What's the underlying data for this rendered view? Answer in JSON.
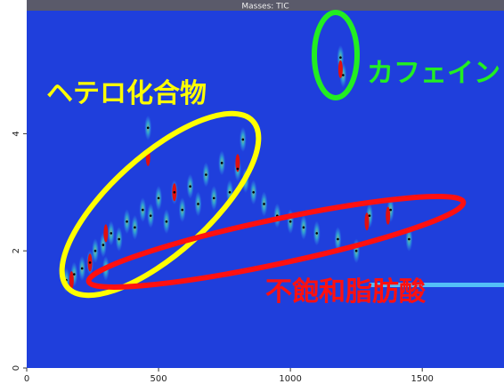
{
  "chart_data": {
    "type": "scatter",
    "title": "Masses: TIC",
    "x": [
      150,
      180,
      210,
      240,
      260,
      290,
      320,
      350,
      380,
      410,
      440,
      470,
      500,
      530,
      560,
      590,
      620,
      650,
      680,
      710,
      740,
      770,
      800,
      830,
      860,
      900,
      950,
      1000,
      1050,
      1100,
      1180,
      1250,
      1300,
      1380,
      1450,
      1200,
      1190,
      460,
      820,
      300
    ],
    "values": [
      1.5,
      1.6,
      1.7,
      1.8,
      2.0,
      2.1,
      2.3,
      2.2,
      2.5,
      2.4,
      2.7,
      2.6,
      2.9,
      2.5,
      3.0,
      2.7,
      3.1,
      2.8,
      3.3,
      2.9,
      3.5,
      3.0,
      3.4,
      3.2,
      3.0,
      2.8,
      2.6,
      2.5,
      2.4,
      2.3,
      2.2,
      2.0,
      2.6,
      2.7,
      2.2,
      5.0,
      5.3,
      4.1,
      3.9,
      1.7
    ],
    "hotspots": {
      "x": [
        170,
        240,
        300,
        460,
        560,
        800,
        1190,
        1290,
        1370
      ],
      "y": [
        1.5,
        1.8,
        2.3,
        3.6,
        3.0,
        3.5,
        5.1,
        2.5,
        2.6
      ]
    },
    "xlim": [
      0,
      1810
    ],
    "ylim": [
      0,
      6.1
    ],
    "xticks": [
      0,
      500,
      1000,
      1500
    ],
    "yticks": [
      0,
      2,
      4
    ],
    "background_color": "#1f3fdc",
    "dot_color": "#000000",
    "hotspot_color": "#e01010",
    "annotations": [
      "ヘテロ化合物",
      "カフェイン",
      "不飽和脂肪酸"
    ]
  }
}
